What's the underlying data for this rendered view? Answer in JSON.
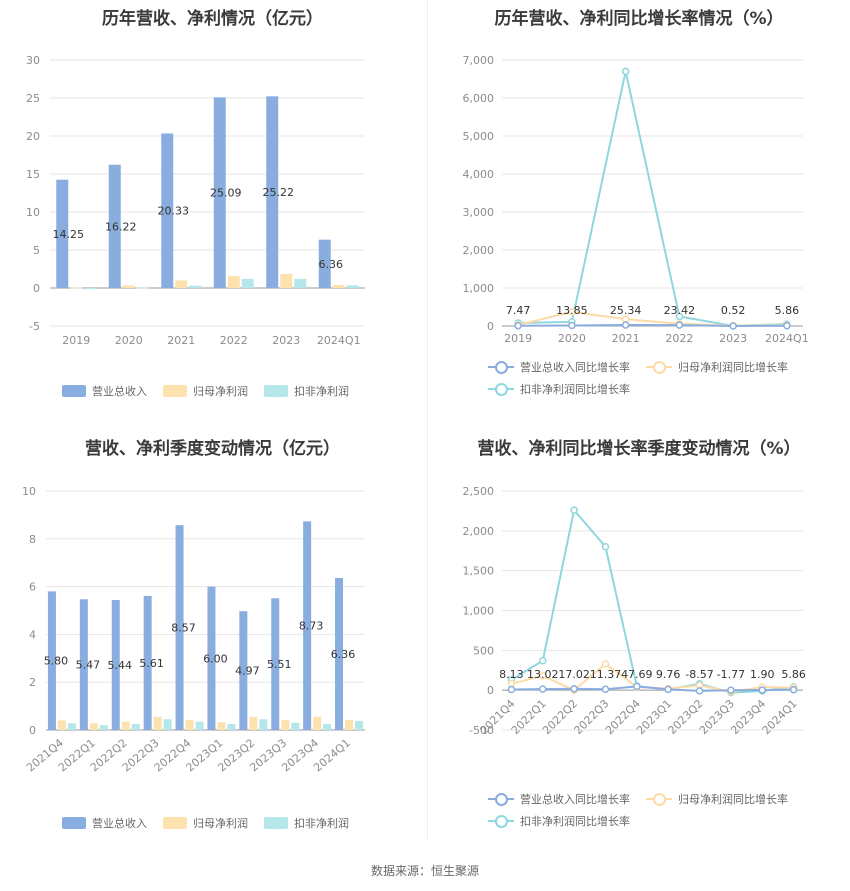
{
  "colors": {
    "revenue": "#8aaddf",
    "net_profit": "#fde2b0",
    "deducted": "#b4e6ea",
    "line_revenue": "#8aaddf",
    "line_net": "#fddba6",
    "line_deducted": "#8fd7de"
  },
  "legend": {
    "bar": [
      "营业总收入",
      "归母净利润",
      "扣非净利润"
    ],
    "line": [
      "营业总收入同比增长率",
      "归母净利润同比增长率",
      "扣非净利润同比增长率"
    ]
  },
  "footer": "数据来源：恒生聚源",
  "chart_data": [
    {
      "id": "c1",
      "type": "bar",
      "title": "历年营收、净利情况（亿元）",
      "categories": [
        "2019",
        "2020",
        "2021",
        "2022",
        "2023",
        "2024Q1"
      ],
      "yticks": [
        -5,
        0,
        5,
        10,
        15,
        20,
        25,
        30
      ],
      "ylim": [
        -5,
        30
      ],
      "series": [
        {
          "name": "营业总收入",
          "values": [
            14.25,
            16.22,
            20.33,
            25.09,
            25.22,
            6.36
          ],
          "labels": [
            "14.25",
            "16.22",
            "20.33",
            "25.09",
            "25.22",
            "6.36"
          ]
        },
        {
          "name": "归母净利润",
          "values": [
            0.05,
            0.35,
            1.0,
            1.6,
            1.85,
            0.4
          ]
        },
        {
          "name": "扣非净利润",
          "values": [
            -0.15,
            0.05,
            0.3,
            1.2,
            1.2,
            0.35
          ]
        }
      ]
    },
    {
      "id": "c2",
      "type": "line",
      "title": "历年营收、净利同比增长率情况（%）",
      "categories": [
        "2019",
        "2020",
        "2021",
        "2022",
        "2023",
        "2024Q1"
      ],
      "yticks": [
        0,
        1000,
        2000,
        3000,
        4000,
        5000,
        6000,
        7000
      ],
      "ytick_labels": [
        "0",
        "1,000",
        "2,000",
        "3,000",
        "4,000",
        "5,000",
        "6,000",
        "7,000"
      ],
      "ylim": [
        0,
        7000
      ],
      "series": [
        {
          "name": "营业总收入同比增长率",
          "values": [
            7.47,
            13.85,
            25.34,
            23.42,
            0.52,
            5.86
          ],
          "labels": [
            "7.47",
            "13.85",
            "25.34",
            "23.42",
            "0.52",
            "5.86"
          ]
        },
        {
          "name": "归母净利润同比增长率",
          "values": [
            30,
            370,
            180,
            60,
            10,
            20
          ]
        },
        {
          "name": "扣非净利润同比增长率",
          "values": [
            80,
            110,
            6700,
            250,
            5,
            50
          ]
        }
      ]
    },
    {
      "id": "c3",
      "type": "bar",
      "title": "营收、净利季度变动情况（亿元）",
      "categories": [
        "2021Q4",
        "2022Q1",
        "2022Q2",
        "2022Q3",
        "2022Q4",
        "2023Q1",
        "2023Q2",
        "2023Q3",
        "2023Q4",
        "2024Q1"
      ],
      "yticks": [
        0,
        2,
        4,
        6,
        8,
        10
      ],
      "ylim": [
        0,
        10
      ],
      "series": [
        {
          "name": "营业总收入",
          "values": [
            5.8,
            5.47,
            5.44,
            5.61,
            8.57,
            6.0,
            4.97,
            5.51,
            8.73,
            6.36
          ],
          "labels": [
            "5.80",
            "5.47",
            "5.44",
            "5.61",
            "8.57",
            "6.00",
            "4.97",
            "5.51",
            "8.73",
            "6.36"
          ]
        },
        {
          "name": "归母净利润",
          "values": [
            0.4,
            0.28,
            0.35,
            0.55,
            0.42,
            0.32,
            0.55,
            0.42,
            0.55,
            0.42
          ]
        },
        {
          "name": "扣非净利润",
          "values": [
            0.28,
            0.2,
            0.25,
            0.45,
            0.35,
            0.25,
            0.45,
            0.3,
            0.25,
            0.38
          ]
        }
      ]
    },
    {
      "id": "c4",
      "type": "line",
      "title": "营收、净利同比增长率季度变动情况（%）",
      "categories": [
        "2021Q4",
        "2022Q1",
        "2022Q2",
        "2022Q3",
        "2022Q4",
        "2023Q1",
        "2023Q2",
        "2023Q3",
        "2023Q4",
        "2024Q1"
      ],
      "yticks": [
        -500,
        0,
        500,
        1000,
        1500,
        2000,
        2500
      ],
      "ytick_labels": [
        "-500",
        "0",
        "500",
        "1,000",
        "1,500",
        "2,000",
        "2,500"
      ],
      "ylim": [
        -500,
        2500
      ],
      "series": [
        {
          "name": "营业总收入同比增长率",
          "values": [
            8.13,
            13.02,
            17.02,
            11.37,
            47.69,
            9.76,
            -8.57,
            -1.77,
            1.9,
            5.86
          ],
          "labels": [
            "8.13",
            "13.02",
            "17.02",
            "11.37",
            "47.69",
            "9.76",
            "-8.57",
            "-1.77",
            "1.90",
            "5.86"
          ]
        },
        {
          "name": "归母净利润同比增长率",
          "values": [
            80,
            180,
            0,
            330,
            40,
            20,
            60,
            -20,
            40,
            30
          ]
        },
        {
          "name": "扣非净利润同比增长率",
          "values": [
            130,
            370,
            2260,
            1800,
            50,
            10,
            80,
            -30,
            -10,
            40
          ]
        }
      ]
    }
  ]
}
